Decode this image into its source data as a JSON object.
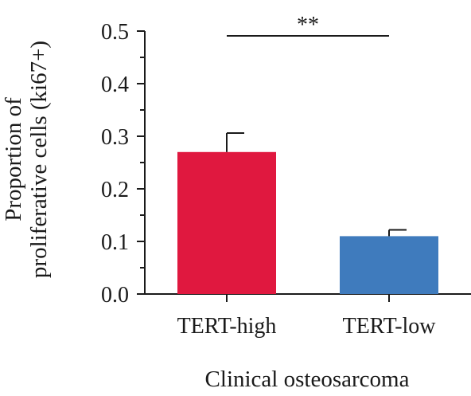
{
  "chart_data": {
    "type": "bar",
    "categories": [
      "TERT-high",
      "TERT-low"
    ],
    "values": [
      0.27,
      0.11
    ],
    "errors": [
      0.036,
      0.012
    ],
    "colors": [
      "#e0183f",
      "#3f7bbd"
    ],
    "xlabel": "Clinical osteosarcoma",
    "ylabel_lines": [
      "Proportion of",
      "proliferative cells (ki67+)"
    ],
    "ylim": [
      0,
      0.5
    ],
    "yticks": [
      "0.0",
      "0.1",
      "0.2",
      "0.3",
      "0.4",
      "0.5"
    ],
    "ytick_values": [
      0,
      0.1,
      0.2,
      0.3,
      0.4,
      0.5
    ],
    "minor_yticks": [
      0.05,
      0.15,
      0.25,
      0.35,
      0.45
    ],
    "significance": {
      "label": "**",
      "from": "TERT-high",
      "to": "TERT-low"
    },
    "grid": false,
    "legend": "none"
  }
}
